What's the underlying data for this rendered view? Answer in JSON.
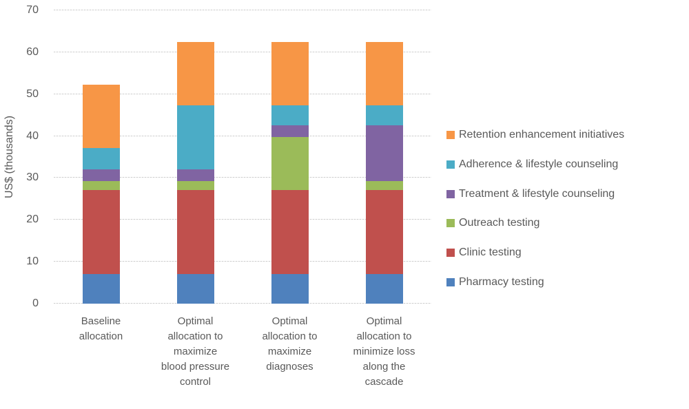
{
  "colors": {
    "text": "#595959",
    "gridline": "#D9D9D9",
    "background": "#FFFFFF"
  },
  "chart_data": {
    "type": "bar",
    "stacked": true,
    "ylabel": "US$ (thousands)",
    "xlabel": "",
    "ylim": [
      0,
      70
    ],
    "yticks": [
      0,
      10,
      20,
      30,
      40,
      50,
      60,
      70
    ],
    "grid": true,
    "gridline_style": "dashed",
    "legend_position": "right",
    "categories": [
      "Baseline\nallocation",
      "Optimal\nallocation to\nmaximize\nblood pressure\ncontrol",
      "Optimal\nallocation to\nmaximize\ndiagnoses",
      "Optimal\nallocation to\nminimize loss\nalong the\ncascade"
    ],
    "series": [
      {
        "name": "Pharmacy testing",
        "color": "#4F81BD",
        "values": [
          7.1,
          7.1,
          7.1,
          7.1
        ]
      },
      {
        "name": "Clinic testing",
        "color": "#C0504D",
        "values": [
          20,
          20,
          20,
          20
        ]
      },
      {
        "name": "Outreach testing",
        "color": "#9BBB59",
        "values": [
          2.1,
          2.1,
          12.7,
          2.1
        ]
      },
      {
        "name": "Treatment & lifestyle counseling",
        "color": "#8064A2",
        "values": [
          2.8,
          2.8,
          2.7,
          13.3
        ]
      },
      {
        "name": "Adherence & lifestyle counseling",
        "color": "#4BACC6",
        "values": [
          5.1,
          15.3,
          4.8,
          4.8
        ]
      },
      {
        "name": "Retention enhancement initiatives",
        "color": "#F79646",
        "values": [
          15.1,
          15.2,
          15.2,
          15.2
        ]
      }
    ],
    "legend_order_top_to_bottom": [
      "Retention enhancement initiatives",
      "Adherence & lifestyle counseling",
      "Treatment & lifestyle counseling",
      "Outreach testing",
      "Clinic testing",
      "Pharmacy testing"
    ]
  }
}
